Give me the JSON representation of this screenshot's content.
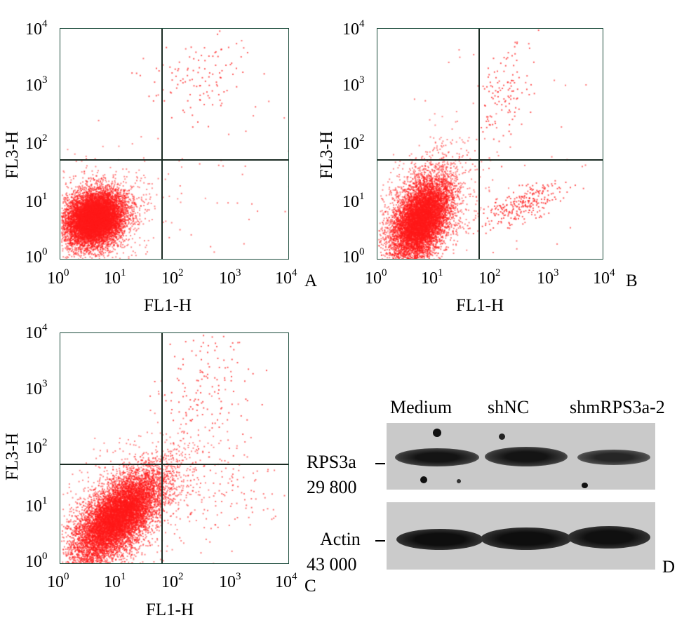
{
  "panels": [
    {
      "id": "A",
      "letter": "A",
      "xlabel": "FL1-H",
      "ylabel": "FL3-H",
      "x_ticks": [
        "10",
        "10",
        "10",
        "10",
        "10"
      ],
      "x_exps": [
        "0",
        "1",
        "2",
        "3",
        "4"
      ],
      "y_ticks": [
        "10",
        "10",
        "10",
        "10",
        "10"
      ],
      "y_exps": [
        "0",
        "1",
        "2",
        "3",
        "4"
      ],
      "quadrant_x": 70,
      "quadrant_y": 55,
      "color": "#ff1a1a"
    },
    {
      "id": "B",
      "letter": "B",
      "xlabel": "FL1-H",
      "ylabel": "FL3-H",
      "x_ticks": [
        "10",
        "10",
        "10",
        "10",
        "10"
      ],
      "x_exps": [
        "0",
        "1",
        "2",
        "3",
        "4"
      ],
      "y_ticks": [
        "10",
        "10",
        "10",
        "10",
        "10"
      ],
      "y_exps": [
        "0",
        "1",
        "2",
        "3",
        "4"
      ],
      "quadrant_x": 60,
      "quadrant_y": 55,
      "color": "#ff1a1a"
    },
    {
      "id": "C",
      "letter": "C",
      "xlabel": "FL1-H",
      "ylabel": "FL3-H",
      "x_ticks": [
        "10",
        "10",
        "10",
        "10",
        "10"
      ],
      "x_exps": [
        "0",
        "1",
        "2",
        "3",
        "4"
      ],
      "y_ticks": [
        "10",
        "10",
        "10",
        "10",
        "10"
      ],
      "y_exps": [
        "0",
        "1",
        "2",
        "3",
        "4"
      ],
      "quadrant_x": 65,
      "quadrant_y": 55,
      "color": "#ff1a1a"
    }
  ],
  "blot": {
    "letter": "D",
    "lanes": [
      "Medium",
      "shNC",
      "shmRPS3a-2"
    ],
    "rows": [
      {
        "name": "RPS3a",
        "size": "29 800"
      },
      {
        "name": "Actin",
        "size": "43 000"
      }
    ]
  }
}
